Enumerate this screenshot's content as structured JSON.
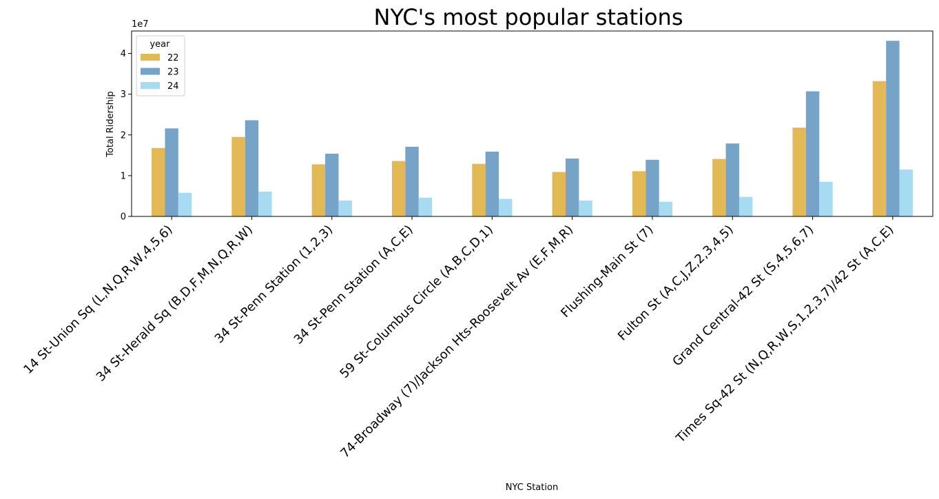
{
  "chart_data": {
    "type": "bar",
    "title": "NYC's most popular stations",
    "xlabel": "NYC Station",
    "ylabel": "Total Ridership",
    "offset_label": "1e7",
    "ylim": [
      0,
      45500000
    ],
    "yticks": [
      0,
      10000000,
      20000000,
      30000000,
      40000000
    ],
    "ytick_labels": [
      "0",
      "1",
      "2",
      "3",
      "4"
    ],
    "grid": false,
    "legend": {
      "title": "year",
      "placement": "top-left"
    },
    "categories": [
      "14 St-Union Sq (L,N,Q,R,W,4,5,6)",
      "34 St-Herald Sq (B,D,F,M,N,Q,R,W)",
      "34 St-Penn Station (1,2,3)",
      "34 St-Penn Station (A,C,E)",
      "59 St-Columbus Circle (A,B,C,D,1)",
      "74-Broadway (7)/Jackson Hts-Roosevelt Av (E,F,M,R)",
      "Flushing-Main St (7)",
      "Fulton St (A,C,J,Z,2,3,4,5)",
      "Grand Central-42 St (S,4,5,6,7)",
      "Times Sq-42 St (N,Q,R,W,S,1,2,3,7)/42 St (A,C,E)"
    ],
    "series": [
      {
        "name": "22",
        "color": "#e2b955",
        "values": [
          16800000,
          19500000,
          12800000,
          13600000,
          12900000,
          10900000,
          11100000,
          14100000,
          21800000,
          33200000
        ]
      },
      {
        "name": "23",
        "color": "#75a4c8",
        "values": [
          21600000,
          23600000,
          15400000,
          17100000,
          15900000,
          14200000,
          13900000,
          17900000,
          30700000,
          43100000
        ]
      },
      {
        "name": "24",
        "color": "#a6dbf1",
        "values": [
          5800000,
          6100000,
          3900000,
          4600000,
          4300000,
          3900000,
          3600000,
          4800000,
          8500000,
          11500000
        ]
      }
    ]
  }
}
